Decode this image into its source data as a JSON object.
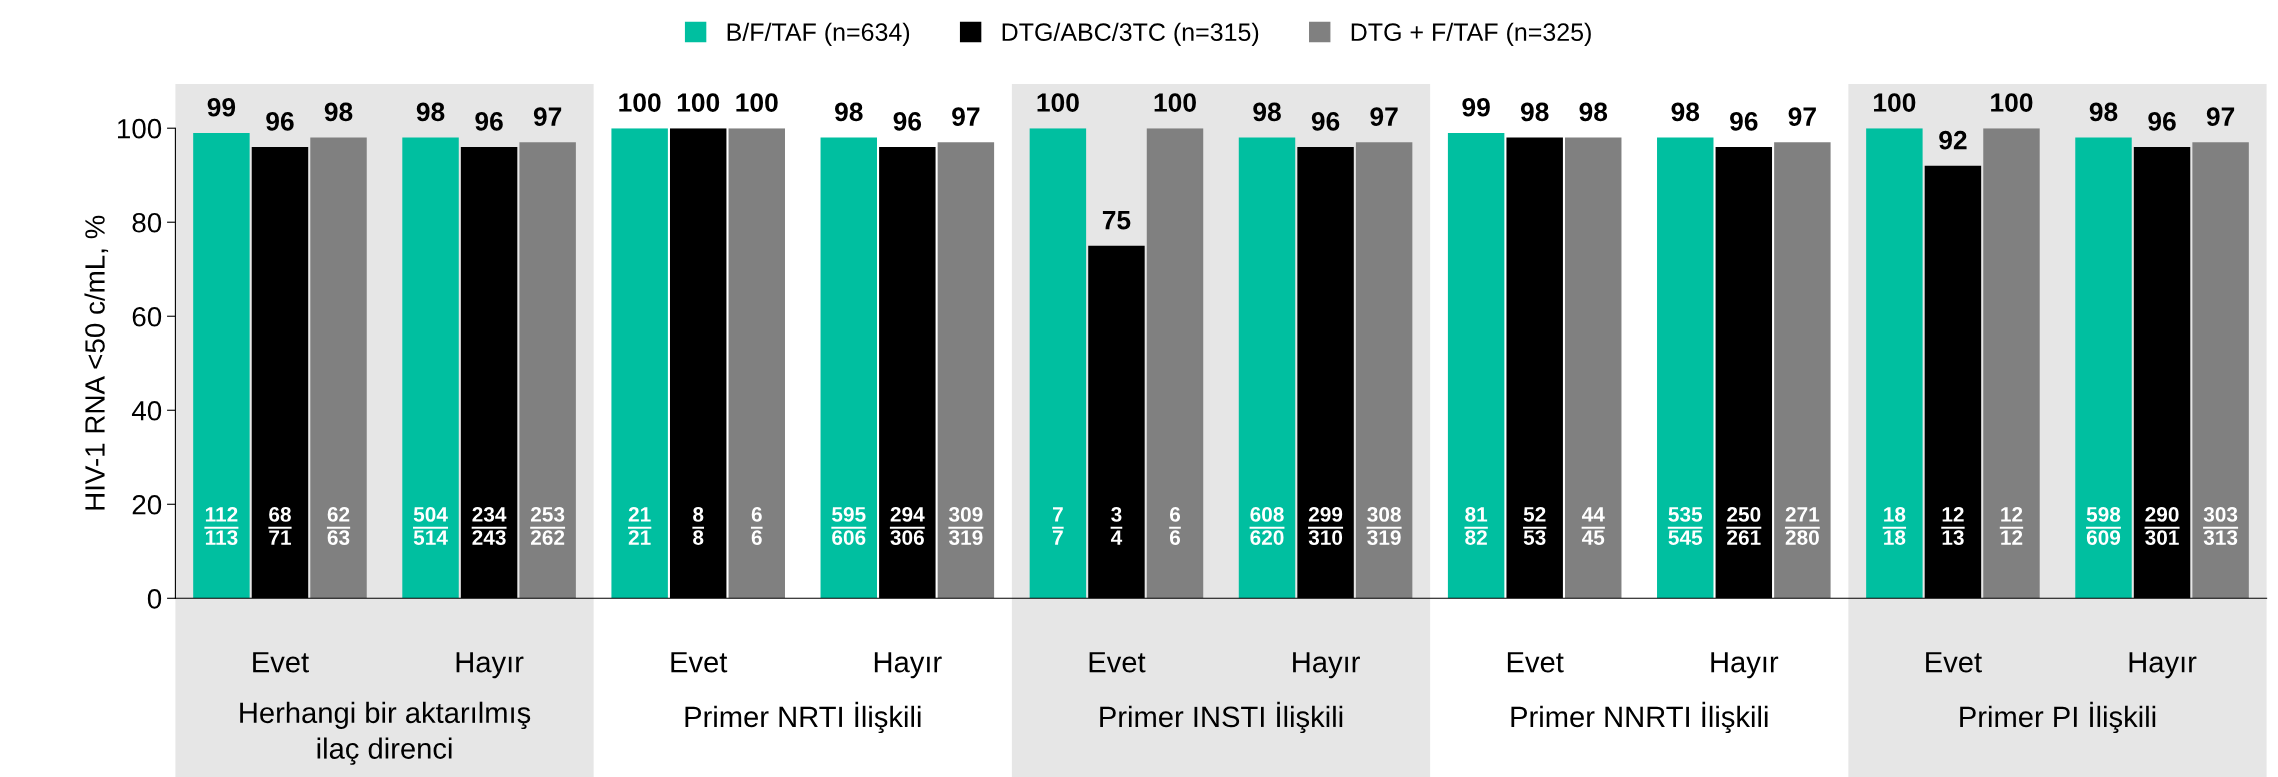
{
  "chart_data": {
    "type": "bar",
    "ylabel": "HIV-1 RNA <50 c/mL, %",
    "categories": [
      "Evet",
      "Hayır",
      "Evet",
      "Hayır",
      "Evet",
      "Hayır",
      "Evet",
      "Hayır",
      "Evet",
      "Hayır"
    ],
    "series": [
      {
        "name": "B/F/TAF (n=634)",
        "color": "#00bfa0",
        "values": [
          99,
          98,
          100,
          98,
          100,
          98,
          99,
          98,
          100,
          98
        ]
      },
      {
        "name": "DTG/ABC/3TC (n=315)",
        "color": "#000000",
        "values": [
          96,
          96,
          100,
          96,
          75,
          96,
          98,
          96,
          92,
          96
        ]
      },
      {
        "name": "DTG + F/TAF (n=325)",
        "color": "#808080",
        "values": [
          98,
          97,
          100,
          97,
          100,
          97,
          98,
          97,
          100,
          97
        ]
      }
    ],
    "ylim": [
      0,
      100
    ],
    "yticks": [
      0,
      20,
      40,
      60,
      80,
      100
    ],
    "data_labels": true,
    "legend": "top",
    "grid": false,
    "annotations": [
      "Herhangi bir aktarılmış\nilaç direnci",
      "Primer NRTI İlişkili",
      "Primer INSTI İlişkili",
      "Primer NNRTI İlişkili",
      "Primer PI İlişkili",
      "112\n113",
      "68\n71",
      "62\n63",
      "504\n514",
      "234\n243",
      "253\n262",
      "21\n21",
      "8\n8",
      "6\n6",
      "595\n606",
      "294\n306",
      "309\n319",
      "7\n7",
      "3\n4",
      "6\n6",
      "608\n620",
      "299\n310",
      "308\n319",
      "81\n82",
      "52\n53",
      "44\n45",
      "535\n545",
      "250\n261",
      "271\n280",
      "18\n18",
      "12\n13",
      "12\n12",
      "598\n609",
      "290\n301",
      "303\n313"
    ]
  }
}
